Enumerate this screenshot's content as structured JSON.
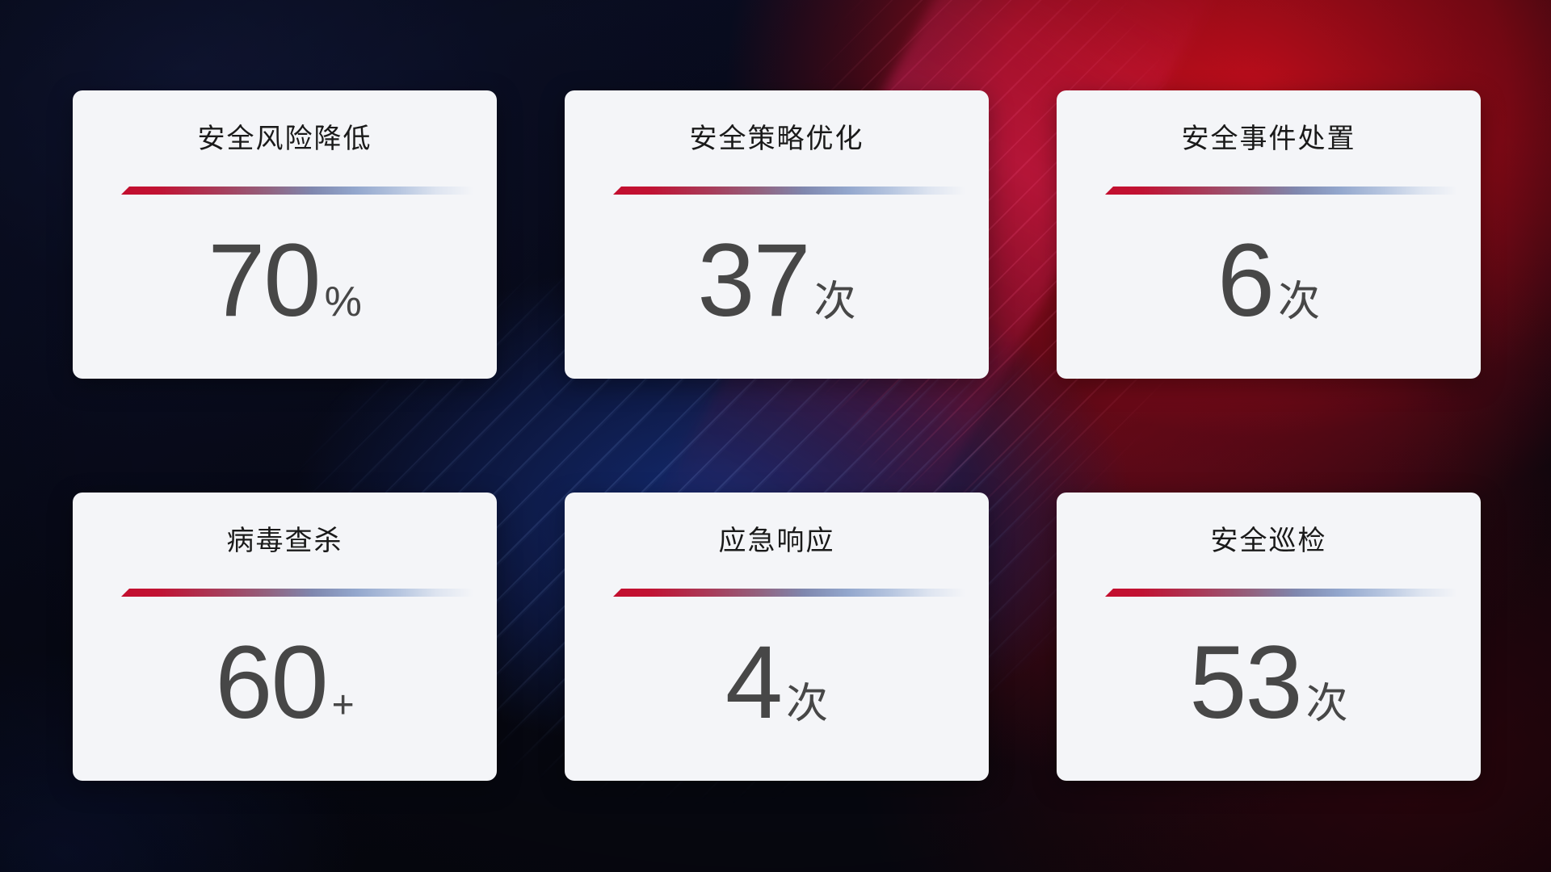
{
  "dashboard": {
    "cards": [
      {
        "title": "安全风险降低",
        "value": "70",
        "unit": "%"
      },
      {
        "title": "安全策略优化",
        "value": "37",
        "unit": "次"
      },
      {
        "title": "安全事件处置",
        "value": "6",
        "unit": "次"
      },
      {
        "title": "病毒查杀",
        "value": "60",
        "unit": "+"
      },
      {
        "title": "应急响应",
        "value": "4",
        "unit": "次"
      },
      {
        "title": "安全巡检",
        "value": "53",
        "unit": "次"
      }
    ],
    "colors": {
      "accent_red": "#c30e2e",
      "divider_blue": "#8fa6cf",
      "card_background": "#f4f5f8",
      "title_text": "#1a1a1a",
      "value_text": "#474747",
      "bg_navy": "#0a0e22",
      "bg_blue_glow": "#16307f",
      "bg_red_bright": "#c60e1c",
      "bg_red_dark": "#3a060e"
    }
  }
}
